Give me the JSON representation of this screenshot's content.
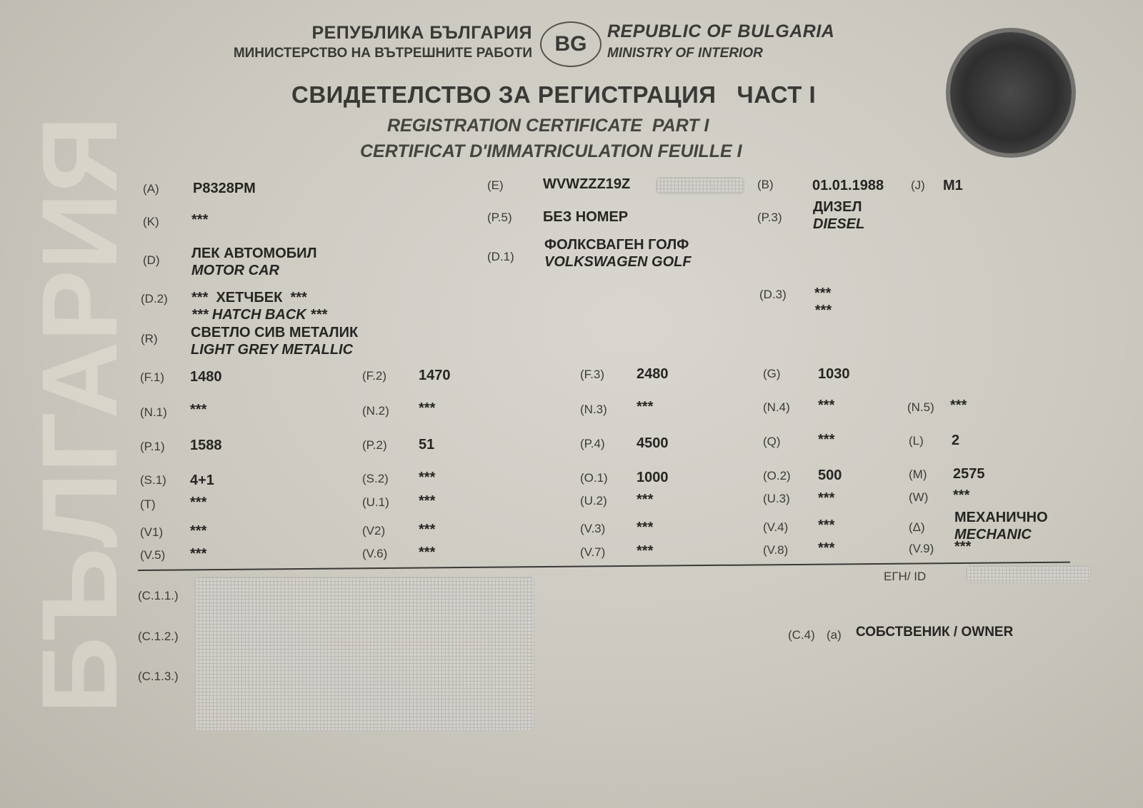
{
  "header": {
    "country_bg": "РЕПУБЛИКА БЪЛГАРИЯ",
    "ministry_bg": "МИНИСТЕРСТВО НА ВЪТРЕШНИТЕ РАБОТИ",
    "country_code": "BG",
    "country_en": "REPUBLIC OF BULGARIA",
    "ministry_en": "MINISTRY OF INTERIOR",
    "title_bg": "СВИДЕТЕЛСТВО ЗА РЕГИСТРАЦИЯ   ЧАСТ I",
    "title_en": "REGISTRATION CERTIFICATE  PART I",
    "title_fr": "CERTIFICAT D'IMMATRICULATION FEUILLE I"
  },
  "fields": [
    {
      "code": "(A)",
      "value": "P8328PM"
    },
    {
      "code": "(E)",
      "value": "WVWZZZ19Z",
      "redacted": true
    },
    {
      "code": "(B)",
      "value": "01.01.1988"
    },
    {
      "code": "(J)",
      "value": "M1"
    },
    {
      "code": "(K)",
      "value": "***"
    },
    {
      "code": "(P.5)",
      "value": "БЕЗ НОМЕР"
    },
    {
      "code": "(P.3)",
      "value": "ДИЗЕЛ",
      "value_en": "DIESEL"
    },
    {
      "code": "(D)",
      "value": "ЛЕК АВТОМОБИЛ",
      "value_en": "MOTOR CAR"
    },
    {
      "code": "(D.1)",
      "value": "ФОЛКСВАГЕН ГОЛФ",
      "value_en": "VOLKSWAGEN GOLF"
    },
    {
      "code": "(D.2)",
      "value": "***  ХЕТЧБЕК  ***",
      "value_en": "*** HATCH BACK ***"
    },
    {
      "code": "(D.3)",
      "value": "***",
      "value_en": "***"
    },
    {
      "code": "(R)",
      "value": "СВЕТЛО СИВ МЕТАЛИК",
      "value_en": "LIGHT GREY METALLIC"
    },
    {
      "code": "(F.1)",
      "value": "1480"
    },
    {
      "code": "(F.2)",
      "value": "1470"
    },
    {
      "code": "(F.3)",
      "value": "2480"
    },
    {
      "code": "(G)",
      "value": "1030"
    },
    {
      "code": "(N.1)",
      "value": "***"
    },
    {
      "code": "(N.2)",
      "value": "***"
    },
    {
      "code": "(N.3)",
      "value": "***"
    },
    {
      "code": "(N.4)",
      "value": "***"
    },
    {
      "code": "(N.5)",
      "value": "***"
    },
    {
      "code": "(P.1)",
      "value": "1588"
    },
    {
      "code": "(P.2)",
      "value": "51"
    },
    {
      "code": "(P.4)",
      "value": "4500"
    },
    {
      "code": "(Q)",
      "value": "***"
    },
    {
      "code": "(L)",
      "value": "2"
    },
    {
      "code": "(S.1)",
      "value": "4+1"
    },
    {
      "code": "(S.2)",
      "value": "***"
    },
    {
      "code": "(O.1)",
      "value": "1000"
    },
    {
      "code": "(O.2)",
      "value": "500"
    },
    {
      "code": "(M)",
      "value": "2575"
    },
    {
      "code": "(T)",
      "value": "***"
    },
    {
      "code": "(U.1)",
      "value": "***"
    },
    {
      "code": "(U.2)",
      "value": "***"
    },
    {
      "code": "(U.3)",
      "value": "***"
    },
    {
      "code": "(W)",
      "value": "***"
    },
    {
      "code": "(V1)",
      "value": "***"
    },
    {
      "code": "(V2)",
      "value": "***"
    },
    {
      "code": "(V.3)",
      "value": "***"
    },
    {
      "code": "(V.4)",
      "value": "***"
    },
    {
      "code": "(Δ)",
      "value": "МЕХАНИЧНО",
      "value_en": "MECHANIC"
    },
    {
      "code": "(V.5)",
      "value": "***"
    },
    {
      "code": "(V.6)",
      "value": "***"
    },
    {
      "code": "(V.7)",
      "value": "***"
    },
    {
      "code": "(V.8)",
      "value": "***"
    },
    {
      "code": "(V.9)",
      "value": "***"
    }
  ],
  "holder": {
    "id_label": "ЕГН/ ID",
    "c11": "(C.1.1.)",
    "c12": "(C.1.2.)",
    "c13": "(C.1.3.)",
    "c4_code": "(C.4)",
    "c4_sub": "(a)",
    "c4_value": "СОБСТВЕНИК / OWNER"
  }
}
